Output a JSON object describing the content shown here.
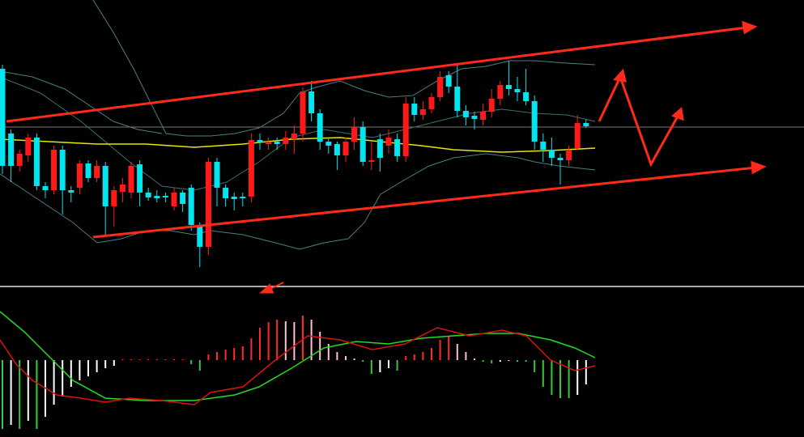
{
  "chart_data": {
    "type": "candlestick",
    "up_color": "#ff1a1a",
    "down_color": "#00e5ee",
    "ylim": [
      0,
      340
    ],
    "ohlc": [
      [
        255,
        260,
        125,
        135
      ],
      [
        175,
        180,
        115,
        135
      ],
      [
        135,
        155,
        128,
        150
      ],
      [
        148,
        175,
        140,
        170
      ],
      [
        170,
        175,
        105,
        110
      ],
      [
        110,
        115,
        95,
        105
      ],
      [
        105,
        160,
        100,
        155
      ],
      [
        155,
        160,
        75,
        105
      ],
      [
        105,
        110,
        90,
        102
      ],
      [
        108,
        142,
        100,
        138
      ],
      [
        138,
        142,
        115,
        120
      ],
      [
        120,
        142,
        115,
        135
      ],
      [
        135,
        140,
        50,
        85
      ],
      [
        85,
        110,
        60,
        105
      ],
      [
        103,
        120,
        90,
        112
      ],
      [
        102,
        140,
        95,
        135
      ],
      [
        137,
        142,
        85,
        102
      ],
      [
        102,
        108,
        92,
        96
      ],
      [
        98,
        105,
        90,
        95
      ],
      [
        98,
        102,
        90,
        96
      ],
      [
        85,
        108,
        80,
        102
      ],
      [
        102,
        105,
        78,
        88
      ],
      [
        108,
        112,
        55,
        62
      ],
      [
        60,
        65,
        10,
        35
      ],
      [
        35,
        145,
        25,
        140
      ],
      [
        140,
        145,
        85,
        108
      ],
      [
        108,
        112,
        85,
        95
      ],
      [
        97,
        102,
        80,
        94
      ],
      [
        97,
        102,
        85,
        95
      ],
      [
        97,
        175,
        90,
        167
      ],
      [
        167,
        175,
        155,
        164
      ],
      [
        162,
        170,
        155,
        165
      ],
      [
        165,
        170,
        155,
        162
      ],
      [
        162,
        178,
        155,
        170
      ],
      [
        168,
        185,
        150,
        175
      ],
      [
        175,
        232,
        165,
        227
      ],
      [
        227,
        240,
        190,
        200
      ],
      [
        200,
        205,
        155,
        165
      ],
      [
        165,
        170,
        150,
        160
      ],
      [
        162,
        165,
        130,
        148
      ],
      [
        148,
        170,
        140,
        165
      ],
      [
        165,
        195,
        155,
        183
      ],
      [
        183,
        190,
        135,
        140
      ],
      [
        140,
        165,
        130,
        142
      ],
      [
        168,
        175,
        128,
        145
      ],
      [
        160,
        180,
        150,
        170
      ],
      [
        168,
        175,
        140,
        147
      ],
      [
        147,
        220,
        140,
        212
      ],
      [
        212,
        220,
        190,
        198
      ],
      [
        198,
        215,
        192,
        205
      ],
      [
        205,
        225,
        200,
        220
      ],
      [
        220,
        252,
        215,
        245
      ],
      [
        247,
        252,
        225,
        233
      ],
      [
        233,
        260,
        195,
        203
      ],
      [
        203,
        210,
        185,
        195
      ],
      [
        197,
        202,
        180,
        193
      ],
      [
        192,
        212,
        185,
        202
      ],
      [
        202,
        230,
        195,
        218
      ],
      [
        218,
        240,
        210,
        235
      ],
      [
        235,
        265,
        222,
        230
      ],
      [
        230,
        245,
        215,
        226
      ],
      [
        226,
        255,
        210,
        215
      ],
      [
        215,
        222,
        155,
        165
      ],
      [
        165,
        175,
        140,
        155
      ],
      [
        155,
        170,
        135,
        145
      ],
      [
        145,
        150,
        112,
        142
      ],
      [
        142,
        160,
        135,
        155
      ],
      [
        157,
        198,
        155,
        188
      ],
      [
        188,
        192,
        182,
        184
      ]
    ],
    "hist_ylim": [
      -95,
      90
    ],
    "hist_up_color": "#ff2a2a",
    "hist_up_fade": "#ffc0cb",
    "hist_down_color": "#33cc33",
    "hist_down_fade": "#ffffff",
    "histogram": [
      -85,
      -80,
      -85,
      -75,
      -85,
      -70,
      -55,
      -45,
      -33,
      -25,
      -20,
      -15,
      -10,
      -7,
      0,
      1,
      1,
      1,
      1,
      1,
      1,
      1,
      -5,
      -13,
      7,
      10,
      13,
      15,
      17,
      27,
      40,
      47,
      50,
      48,
      47,
      55,
      50,
      35,
      20,
      10,
      5,
      2,
      -2,
      -17,
      -15,
      -10,
      -13,
      5,
      7,
      10,
      15,
      25,
      30,
      20,
      10,
      2,
      -2,
      -4,
      -2,
      -1,
      -2,
      -2,
      -15,
      -33,
      -43,
      -47,
      -47,
      -43,
      -30
    ]
  }
}
